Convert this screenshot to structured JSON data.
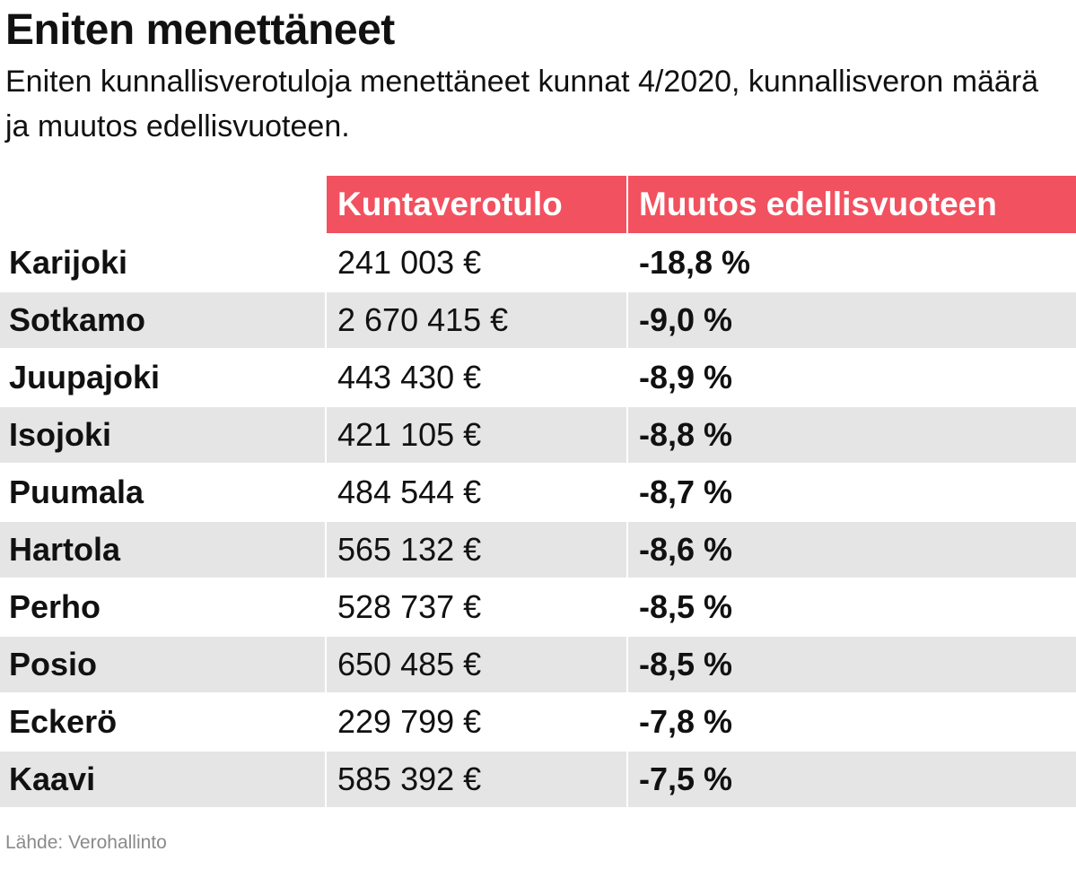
{
  "title": "Eniten menettäneet",
  "subtitle": "Eniten kunnallisverotuloja menettäneet kunnat 4/2020, kunnallisveron määrä ja muutos edellisvuoteen.",
  "source": "Lähde: Verohallinto",
  "colors": {
    "header_background": "#f2515f",
    "header_text": "#ffffff",
    "shaded_row": "#e5e5e5"
  },
  "chart_data": {
    "type": "table",
    "title": "Eniten menettäneet",
    "subtitle": "Eniten kunnallisverotuloja menettäneet kunnat 4/2020, kunnallisveron määrä ja muutos edellisvuoteen.",
    "columns": [
      "",
      "Kuntaverotulo",
      "Muutos edellisvuoteen"
    ],
    "rows": [
      {
        "name": "Karijoki",
        "revenue": "241 003 €",
        "change": "-18,8 %"
      },
      {
        "name": "Sotkamo",
        "revenue": "2 670 415 €",
        "change": "-9,0 %"
      },
      {
        "name": "Juupajoki",
        "revenue": "443 430 €",
        "change": "-8,9 %"
      },
      {
        "name": "Isojoki",
        "revenue": "421 105 €",
        "change": "-8,8 %"
      },
      {
        "name": "Puumala",
        "revenue": "484 544 €",
        "change": "-8,7 %"
      },
      {
        "name": "Hartola",
        "revenue": "565 132 €",
        "change": "-8,6 %"
      },
      {
        "name": "Perho",
        "revenue": "528 737 €",
        "change": "-8,5 %"
      },
      {
        "name": "Posio",
        "revenue": "650 485 €",
        "change": "-8,5 %"
      },
      {
        "name": "Eckerö",
        "revenue": "229 799 €",
        "change": "-7,8 %"
      },
      {
        "name": "Kaavi",
        "revenue": "585 392 €",
        "change": "-7,5 %"
      }
    ],
    "source": "Lähde: Verohallinto"
  }
}
